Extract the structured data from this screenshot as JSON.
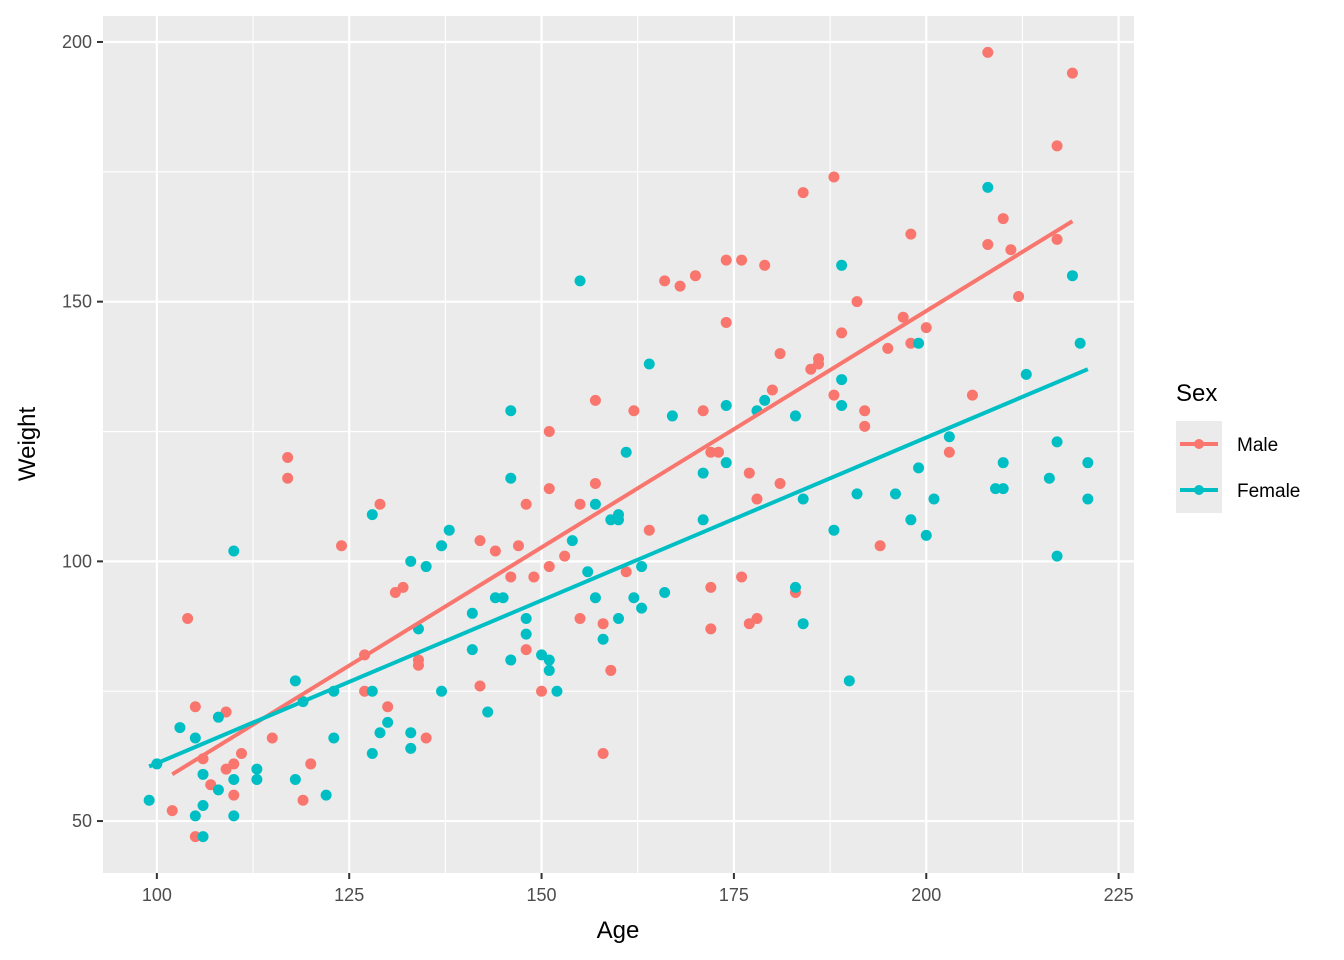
{
  "chart_data": {
    "type": "scatter",
    "title": "",
    "xlabel": "Age",
    "ylabel": "Weight",
    "xlim": [
      93,
      227
    ],
    "ylim": [
      40,
      205
    ],
    "x_ticks": [
      100,
      125,
      150,
      175,
      200,
      225
    ],
    "y_ticks": [
      50,
      100,
      150,
      200
    ],
    "grid": true,
    "legend": {
      "title": "Sex",
      "position": "right"
    },
    "panel_color": "#ebebeb",
    "series": [
      {
        "name": "Male",
        "color": "#f8766d",
        "fit_line": {
          "x": [
            102,
            219
          ],
          "y": [
            59,
            165.5
          ]
        },
        "points": [
          [
            102,
            52
          ],
          [
            104,
            89
          ],
          [
            105,
            72
          ],
          [
            105,
            47
          ],
          [
            106,
            62
          ],
          [
            107,
            57
          ],
          [
            109,
            71
          ],
          [
            109,
            60
          ],
          [
            110,
            61
          ],
          [
            110,
            55
          ],
          [
            111,
            63
          ],
          [
            115,
            66
          ],
          [
            117,
            120
          ],
          [
            117,
            116
          ],
          [
            119,
            54
          ],
          [
            120,
            61
          ],
          [
            124,
            103
          ],
          [
            127,
            82
          ],
          [
            127,
            75
          ],
          [
            129,
            111
          ],
          [
            130,
            72
          ],
          [
            131,
            94
          ],
          [
            132,
            95
          ],
          [
            134,
            81
          ],
          [
            134,
            80
          ],
          [
            135,
            66
          ],
          [
            142,
            104
          ],
          [
            142,
            76
          ],
          [
            144,
            102
          ],
          [
            146,
            97
          ],
          [
            147,
            103
          ],
          [
            148,
            111
          ],
          [
            148,
            83
          ],
          [
            149,
            97
          ],
          [
            150,
            75
          ],
          [
            151,
            125
          ],
          [
            151,
            114
          ],
          [
            151,
            99
          ],
          [
            153,
            101
          ],
          [
            155,
            111
          ],
          [
            155,
            89
          ],
          [
            157,
            131
          ],
          [
            157,
            115
          ],
          [
            158,
            88
          ],
          [
            158,
            63
          ],
          [
            159,
            79
          ],
          [
            161,
            98
          ],
          [
            162,
            129
          ],
          [
            164,
            106
          ],
          [
            166,
            154
          ],
          [
            168,
            153
          ],
          [
            170,
            155
          ],
          [
            171,
            129
          ],
          [
            172,
            121
          ],
          [
            172,
            95
          ],
          [
            172,
            87
          ],
          [
            173,
            121
          ],
          [
            174,
            158
          ],
          [
            174,
            146
          ],
          [
            176,
            158
          ],
          [
            176,
            97
          ],
          [
            177,
            117
          ],
          [
            177,
            88
          ],
          [
            178,
            112
          ],
          [
            178,
            89
          ],
          [
            179,
            157
          ],
          [
            180,
            133
          ],
          [
            181,
            140
          ],
          [
            181,
            115
          ],
          [
            183,
            94
          ],
          [
            184,
            171
          ],
          [
            185,
            137
          ],
          [
            186,
            139
          ],
          [
            186,
            138
          ],
          [
            188,
            174
          ],
          [
            188,
            132
          ],
          [
            189,
            144
          ],
          [
            191,
            150
          ],
          [
            192,
            129
          ],
          [
            192,
            126
          ],
          [
            194,
            103
          ],
          [
            195,
            141
          ],
          [
            197,
            147
          ],
          [
            198,
            163
          ],
          [
            198,
            142
          ],
          [
            200,
            145
          ],
          [
            203,
            121
          ],
          [
            206,
            132
          ],
          [
            208,
            198
          ],
          [
            208,
            161
          ],
          [
            210,
            166
          ],
          [
            211,
            160
          ],
          [
            212,
            151
          ],
          [
            217,
            180
          ],
          [
            217,
            162
          ],
          [
            219,
            194
          ]
        ]
      },
      {
        "name": "Female",
        "color": "#00bfc4",
        "fit_line": {
          "x": [
            99,
            221
          ],
          "y": [
            60.5,
            137
          ]
        },
        "points": [
          [
            99,
            54
          ],
          [
            100,
            61
          ],
          [
            103,
            68
          ],
          [
            105,
            66
          ],
          [
            105,
            51
          ],
          [
            106,
            59
          ],
          [
            106,
            53
          ],
          [
            106,
            47
          ],
          [
            108,
            70
          ],
          [
            108,
            56
          ],
          [
            110,
            102
          ],
          [
            110,
            58
          ],
          [
            110,
            51
          ],
          [
            113,
            60
          ],
          [
            113,
            58
          ],
          [
            118,
            77
          ],
          [
            118,
            58
          ],
          [
            119,
            73
          ],
          [
            122,
            55
          ],
          [
            123,
            75
          ],
          [
            123,
            66
          ],
          [
            128,
            109
          ],
          [
            128,
            75
          ],
          [
            128,
            63
          ],
          [
            129,
            67
          ],
          [
            130,
            69
          ],
          [
            133,
            100
          ],
          [
            133,
            67
          ],
          [
            133,
            64
          ],
          [
            134,
            87
          ],
          [
            135,
            99
          ],
          [
            137,
            103
          ],
          [
            137,
            75
          ],
          [
            138,
            106
          ],
          [
            141,
            90
          ],
          [
            141,
            83
          ],
          [
            143,
            71
          ],
          [
            144,
            93
          ],
          [
            145,
            93
          ],
          [
            146,
            129
          ],
          [
            146,
            116
          ],
          [
            146,
            81
          ],
          [
            148,
            89
          ],
          [
            148,
            86
          ],
          [
            150,
            82
          ],
          [
            151,
            81
          ],
          [
            151,
            79
          ],
          [
            152,
            75
          ],
          [
            154,
            104
          ],
          [
            155,
            154
          ],
          [
            156,
            98
          ],
          [
            157,
            111
          ],
          [
            157,
            93
          ],
          [
            158,
            85
          ],
          [
            159,
            108
          ],
          [
            160,
            109
          ],
          [
            160,
            108
          ],
          [
            160,
            89
          ],
          [
            161,
            121
          ],
          [
            162,
            93
          ],
          [
            163,
            99
          ],
          [
            163,
            91
          ],
          [
            164,
            138
          ],
          [
            166,
            94
          ],
          [
            167,
            128
          ],
          [
            171,
            117
          ],
          [
            171,
            108
          ],
          [
            174,
            130
          ],
          [
            174,
            119
          ],
          [
            178,
            129
          ],
          [
            179,
            131
          ],
          [
            183,
            128
          ],
          [
            183,
            95
          ],
          [
            184,
            112
          ],
          [
            184,
            88
          ],
          [
            188,
            106
          ],
          [
            189,
            157
          ],
          [
            189,
            135
          ],
          [
            189,
            130
          ],
          [
            190,
            77
          ],
          [
            191,
            113
          ],
          [
            196,
            113
          ],
          [
            198,
            108
          ],
          [
            199,
            142
          ],
          [
            199,
            118
          ],
          [
            200,
            105
          ],
          [
            201,
            112
          ],
          [
            203,
            124
          ],
          [
            209,
            114
          ],
          [
            210,
            119
          ],
          [
            210,
            114
          ],
          [
            208,
            172
          ],
          [
            213,
            136
          ],
          [
            216,
            116
          ],
          [
            217,
            123
          ],
          [
            217,
            101
          ],
          [
            219,
            155
          ],
          [
            220,
            142
          ],
          [
            221,
            119
          ],
          [
            221,
            112
          ]
        ]
      }
    ]
  }
}
